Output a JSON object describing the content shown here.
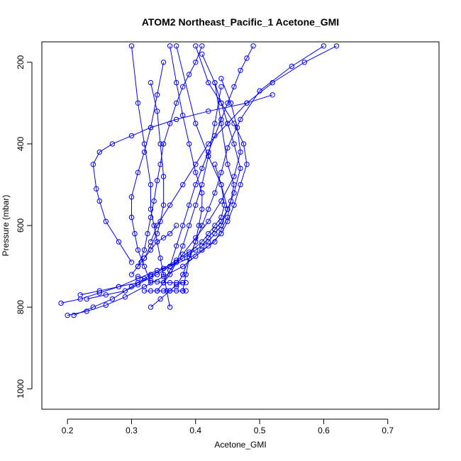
{
  "chart_data": {
    "type": "line",
    "title": "ATOM2 Northeast_Pacific_1 Acetone_GMI",
    "xlabel": "Acetone_GMI",
    "ylabel": "Pressure (mbar)",
    "xlim": [
      0.16,
      0.78
    ],
    "ylim": [
      1050,
      150
    ],
    "y_reversed": true,
    "xticks": [
      "0.2",
      "0.3",
      "0.4",
      "0.5",
      "0.6",
      "0.7"
    ],
    "yticks": [
      "200",
      "400",
      "600",
      "800",
      "1000"
    ],
    "marker": "open-circle",
    "color": "#0000ff",
    "series": [
      {
        "x": [
          0.19,
          0.22,
          0.25,
          0.28,
          0.31,
          0.34,
          0.37,
          0.39,
          0.41,
          0.42,
          0.43,
          0.44,
          0.45,
          0.46,
          0.47,
          0.46,
          0.45,
          0.44,
          0.43,
          0.41
        ],
        "y": [
          790,
          780,
          765,
          750,
          730,
          710,
          690,
          670,
          650,
          630,
          610,
          590,
          560,
          520,
          460,
          400,
          350,
          300,
          250,
          180
        ]
      },
      {
        "x": [
          0.2,
          0.23,
          0.26,
          0.29,
          0.32,
          0.35,
          0.38,
          0.4,
          0.42,
          0.44,
          0.45,
          0.46,
          0.47,
          0.48,
          0.475,
          0.46,
          0.44,
          0.42,
          0.4
        ],
        "y": [
          820,
          810,
          795,
          775,
          750,
          725,
          700,
          675,
          650,
          620,
          590,
          550,
          500,
          450,
          400,
          350,
          300,
          250,
          160
        ]
      },
      {
        "x": [
          0.21,
          0.24,
          0.27,
          0.3,
          0.33,
          0.36,
          0.39,
          0.41,
          0.43,
          0.44,
          0.45,
          0.455,
          0.46,
          0.45,
          0.44,
          0.43
        ],
        "y": [
          820,
          800,
          780,
          750,
          720,
          700,
          680,
          660,
          640,
          610,
          580,
          540,
          500,
          450,
          350,
          250
        ]
      },
      {
        "x": [
          0.22,
          0.25,
          0.28,
          0.31,
          0.34,
          0.36,
          0.38,
          0.4,
          0.42,
          0.43,
          0.44,
          0.45,
          0.44,
          0.42,
          0.4,
          0.37
        ],
        "y": [
          770,
          760,
          750,
          740,
          720,
          700,
          680,
          660,
          640,
          620,
          600,
          560,
          500,
          430,
          350,
          160
        ]
      },
      {
        "x": [
          0.23,
          0.26,
          0.29,
          0.31,
          0.33,
          0.35,
          0.37,
          0.39,
          0.41,
          0.42,
          0.43,
          0.44,
          0.445,
          0.44,
          0.43
        ],
        "y": [
          780,
          770,
          760,
          745,
          725,
          705,
          685,
          665,
          640,
          620,
          600,
          580,
          550,
          500,
          450
        ]
      },
      {
        "x": [
          0.33,
          0.345,
          0.36,
          0.37,
          0.38
        ],
        "y": [
          800,
          780,
          760,
          745,
          740
        ]
      },
      {
        "x": [
          0.31,
          0.32,
          0.33,
          0.34,
          0.35,
          0.36,
          0.37,
          0.38,
          0.385
        ],
        "y": [
          725,
          730,
          735,
          738,
          740,
          740,
          740,
          740,
          740
        ]
      },
      {
        "x": [
          0.32,
          0.33,
          0.34,
          0.35,
          0.36,
          0.37,
          0.38,
          0.385
        ],
        "y": [
          760,
          760,
          760,
          760,
          760,
          760,
          760,
          760
        ]
      },
      {
        "x": [
          0.31,
          0.315,
          0.32,
          0.33,
          0.34,
          0.35,
          0.36,
          0.37
        ],
        "y": [
          700,
          690,
          680,
          660,
          640,
          630,
          620,
          600
        ]
      },
      {
        "x": [
          0.3,
          0.31,
          0.32,
          0.33,
          0.34,
          0.345,
          0.35,
          0.35,
          0.345,
          0.34,
          0.33
        ],
        "y": [
          720,
          700,
          680,
          650,
          620,
          590,
          550,
          480,
          400,
          320,
          250
        ]
      },
      {
        "x": [
          0.31,
          0.32,
          0.325,
          0.33,
          0.335,
          0.34,
          0.345,
          0.35,
          0.36,
          0.37,
          0.38,
          0.39,
          0.4,
          0.41
        ],
        "y": [
          700,
          660,
          620,
          580,
          540,
          490,
          450,
          400,
          350,
          300,
          260,
          230,
          200,
          160
        ]
      },
      {
        "x": [
          0.3,
          0.28,
          0.26,
          0.25,
          0.245,
          0.24,
          0.25,
          0.27,
          0.3,
          0.33,
          0.37,
          0.42,
          0.48,
          0.52
        ],
        "y": [
          690,
          640,
          590,
          540,
          510,
          450,
          420,
          400,
          380,
          360,
          340,
          320,
          300,
          280
        ]
      },
      {
        "x": [
          0.33,
          0.32,
          0.31,
          0.305,
          0.3,
          0.3,
          0.31,
          0.32,
          0.33,
          0.34,
          0.35
        ],
        "y": [
          740,
          700,
          660,
          620,
          580,
          530,
          470,
          420,
          360,
          280,
          200
        ]
      },
      {
        "x": [
          0.36,
          0.37,
          0.38,
          0.39,
          0.4,
          0.41,
          0.42,
          0.43,
          0.44,
          0.45,
          0.46,
          0.47,
          0.48,
          0.49
        ],
        "y": [
          700,
          650,
          600,
          550,
          500,
          460,
          420,
          380,
          340,
          300,
          260,
          220,
          190,
          160
        ]
      },
      {
        "x": [
          0.33,
          0.34,
          0.36,
          0.38,
          0.4,
          0.42,
          0.45,
          0.48,
          0.52,
          0.57,
          0.62
        ],
        "y": [
          640,
          600,
          550,
          500,
          450,
          400,
          350,
          300,
          250,
          200,
          160
        ]
      },
      {
        "x": [
          0.37,
          0.38,
          0.39,
          0.4,
          0.41,
          0.42,
          0.43,
          0.44,
          0.45,
          0.47,
          0.5,
          0.55,
          0.6
        ],
        "y": [
          750,
          720,
          680,
          640,
          600,
          560,
          520,
          470,
          410,
          340,
          270,
          210,
          160
        ]
      },
      {
        "x": [
          0.36,
          0.355,
          0.35,
          0.345,
          0.34,
          0.335,
          0.33,
          0.33,
          0.32,
          0.31,
          0.3
        ],
        "y": [
          800,
          760,
          720,
          680,
          640,
          600,
          560,
          500,
          400,
          300,
          160
        ]
      },
      {
        "x": [
          0.38,
          0.385,
          0.39,
          0.4,
          0.405,
          0.41,
          0.41,
          0.4,
          0.39,
          0.38,
          0.37,
          0.36
        ],
        "y": [
          760,
          720,
          680,
          640,
          600,
          560,
          520,
          470,
          400,
          330,
          250,
          160
        ]
      },
      {
        "x": [
          0.35,
          0.36,
          0.37,
          0.38,
          0.39,
          0.4,
          0.41,
          0.42,
          0.43,
          0.44
        ],
        "y": [
          740,
          720,
          690,
          650,
          600,
          550,
          500,
          430,
          350,
          260
        ]
      },
      {
        "x": [
          0.34,
          0.35,
          0.36,
          0.38,
          0.4,
          0.42,
          0.44,
          0.46,
          0.47,
          0.465,
          0.455,
          0.44
        ],
        "y": [
          760,
          740,
          710,
          670,
          630,
          590,
          540,
          480,
          420,
          360,
          300,
          240
        ]
      }
    ]
  }
}
